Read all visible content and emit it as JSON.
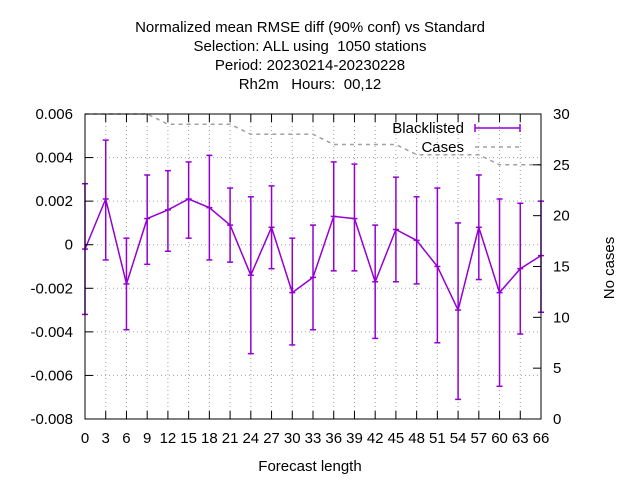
{
  "chart_data": {
    "type": "line",
    "title_lines": [
      "Normalized mean RMSE diff (90% conf) vs Standard",
      "Selection: ALL using  1050 stations",
      "Period: 20230214-20230228",
      "Rh2m   Hours:  00,12"
    ],
    "xlabel": "Forecast length",
    "ylabel_left": "",
    "ylabel_right": "No cases",
    "x": [
      0,
      3,
      6,
      9,
      12,
      15,
      18,
      21,
      24,
      27,
      30,
      33,
      36,
      39,
      42,
      45,
      48,
      51,
      54,
      57,
      60,
      63,
      66
    ],
    "xlim": [
      0,
      66
    ],
    "ylim_left": [
      -0.008,
      0.006
    ],
    "ylim_right": [
      0,
      30
    ],
    "y_ticks_left": [
      "0.006",
      "0.004",
      "0.002",
      "0",
      "-0.002",
      "-0.004",
      "-0.006",
      "-0.008"
    ],
    "y_ticks_right": [
      "30",
      "25",
      "20",
      "15",
      "10",
      "5",
      "0"
    ],
    "x_ticks": [
      "0",
      "3",
      "6",
      "9",
      "12",
      "15",
      "18",
      "21",
      "24",
      "27",
      "30",
      "33",
      "36",
      "39",
      "42",
      "45",
      "48",
      "51",
      "54",
      "57",
      "60",
      "63",
      "66"
    ],
    "grid": true,
    "legend_position": "top-right",
    "series": [
      {
        "name": "Blacklisted",
        "axis": "left",
        "color": "#9400d3",
        "style": "line-errorbars",
        "values": [
          -0.0002,
          0.0021,
          -0.0018,
          0.0012,
          0.0016,
          0.0021,
          0.0017,
          0.0009,
          -0.0014,
          0.0008,
          -0.0022,
          -0.0015,
          0.0013,
          0.0012,
          -0.0017,
          0.0007,
          0.0002,
          -0.001,
          -0.003,
          0.0008,
          -0.0022,
          -0.0011,
          -0.0005
        ],
        "err_low": [
          -0.0032,
          -0.0007,
          -0.0039,
          -0.0009,
          -0.0003,
          0.0003,
          -0.0007,
          -0.0008,
          -0.005,
          -0.0011,
          -0.0046,
          -0.0039,
          -0.0012,
          -0.0012,
          -0.0043,
          -0.0017,
          -0.0018,
          -0.0045,
          -0.0071,
          -0.0016,
          -0.0065,
          -0.0041,
          -0.0031
        ],
        "err_high": [
          0.0028,
          0.0048,
          0.0003,
          0.0032,
          0.0034,
          0.0038,
          0.0041,
          0.0026,
          0.0022,
          0.0027,
          0.0003,
          0.0009,
          0.0038,
          0.0037,
          0.0009,
          0.0031,
          0.0022,
          0.0026,
          0.001,
          0.0032,
          0.0021,
          0.0019,
          0.002
        ]
      },
      {
        "name": "Cases",
        "axis": "right",
        "color": "#a0a0a0",
        "style": "dashed-step",
        "values": [
          30,
          30,
          30,
          30,
          29,
          29,
          29,
          29,
          28,
          28,
          28,
          28,
          27,
          27,
          27,
          27,
          26,
          26,
          26,
          26,
          25,
          25,
          25
        ]
      }
    ]
  }
}
